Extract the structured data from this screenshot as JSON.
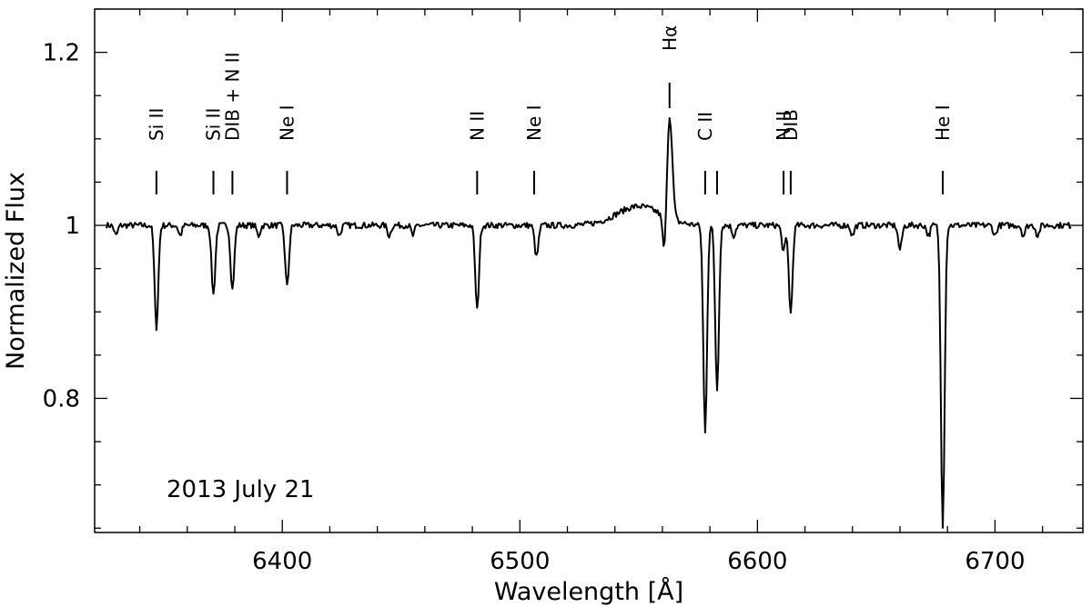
{
  "chart_data": {
    "type": "line",
    "xlabel": "Wavelength [Å]",
    "ylabel": "Normalized Flux",
    "xlim": [
      6321,
      6737
    ],
    "ylim": [
      0.645,
      1.25
    ],
    "x_ticks": [
      {
        "value": 6400,
        "label": "6400"
      },
      {
        "value": 6500,
        "label": "6500"
      },
      {
        "value": 6600,
        "label": "6600"
      },
      {
        "value": 6700,
        "label": "6700"
      }
    ],
    "y_ticks": [
      {
        "value": 0.8,
        "label": "0.8"
      },
      {
        "value": 1.0,
        "label": "1"
      },
      {
        "value": 1.2,
        "label": "1.2"
      }
    ],
    "x_minor_step": 20,
    "y_minor_step": 0.05,
    "annotation": "2013 July 21",
    "continuum": 1.0,
    "wing": {
      "center": 6550,
      "height": 0.022,
      "width": 13
    },
    "emission": {
      "center": 6563,
      "peak": 1.12
    },
    "absorption_lines": [
      {
        "center": 6347,
        "min": 0.882
      },
      {
        "center": 6371,
        "min": 0.92
      },
      {
        "center": 6379,
        "min": 0.926
      },
      {
        "center": 6402,
        "min": 0.929
      },
      {
        "center": 6482,
        "min": 0.902
      },
      {
        "center": 6507,
        "min": 0.963
      },
      {
        "center": 6561,
        "min": 0.944
      },
      {
        "center": 6578,
        "min": 0.76
      },
      {
        "center": 6583,
        "min": 0.81
      },
      {
        "center": 6611,
        "min": 0.97
      },
      {
        "center": 6614,
        "min": 0.898
      },
      {
        "center": 6660,
        "min": 0.972
      },
      {
        "center": 6678,
        "min": 0.653
      }
    ],
    "weak_features": [
      6330,
      6357,
      6390,
      6424,
      6445,
      6455,
      6590,
      6640,
      6672,
      6700,
      6712,
      6718
    ],
    "line_marks": [
      {
        "x": 6347,
        "label": "Si II"
      },
      {
        "x": 6371,
        "label": "Si II"
      },
      {
        "x": 6379,
        "label": "DIB + N II"
      },
      {
        "x": 6402,
        "label": "Ne I"
      },
      {
        "x": 6482,
        "label": "N II"
      },
      {
        "x": 6506,
        "label": "Ne I"
      },
      {
        "x": 6563,
        "label": "Hα"
      },
      {
        "x": 6578,
        "label": "C II"
      },
      {
        "x": 6583,
        "label": ""
      },
      {
        "x": 6611,
        "label": "N II"
      },
      {
        "x": 6614,
        "label": "DIB"
      },
      {
        "x": 6678,
        "label": "He I"
      }
    ]
  }
}
